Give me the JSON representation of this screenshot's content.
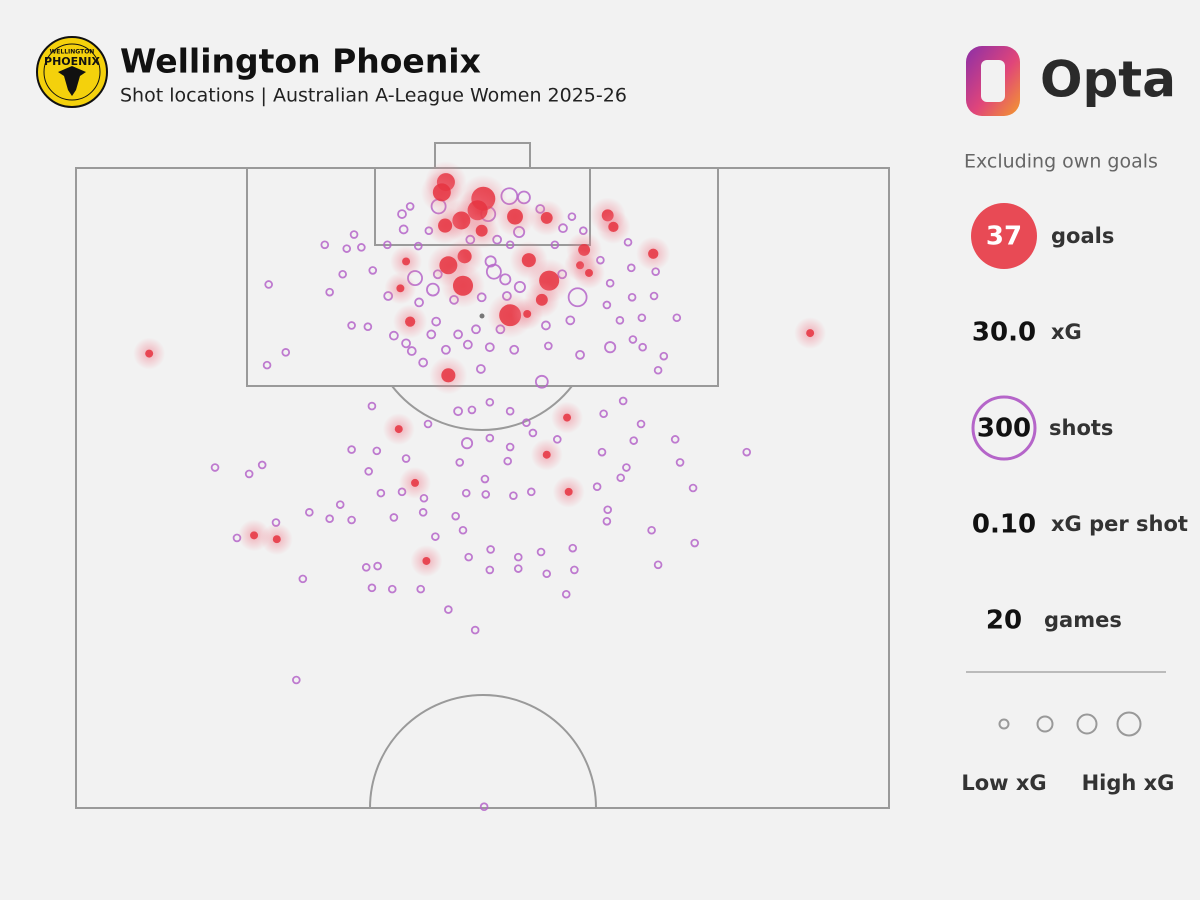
{
  "header": {
    "badge_top": "WELLINGTON",
    "badge_main": "PHOENIX",
    "title": "Wellington Phoenix",
    "subtitle": "Shot locations | Australian A-League Women 2025-26",
    "brand": "Opta"
  },
  "sidebar": {
    "note": "Excluding own goals",
    "goals_value": "37",
    "xg_value": "30.0",
    "xg_label": "xG",
    "shots_value": "300",
    "xg_per_shot_value": "0.10",
    "xg_per_shot_label": "xG per shot",
    "games_value": "20",
    "games_label": "games",
    "legend_low": "Low xG",
    "legend_high": "High xG"
  },
  "chart_data": {
    "type": "scatter",
    "xlim": [
      0,
      100
    ],
    "ylim": [
      50,
      100
    ],
    "series": [
      {
        "name": "goals",
        "color": "#e6323f",
        "x": [
          45.5,
          45.0,
          50.1,
          49.4,
          47.4,
          45.4,
          54.0,
          49.9,
          57.9,
          65.4,
          66.1,
          62.5,
          71.0,
          40.6,
          47.8,
          45.8,
          55.7,
          62.0,
          63.1,
          58.2,
          47.6,
          57.3,
          39.9,
          53.4,
          55.5,
          41.1,
          45.8,
          90.3,
          9.0,
          39.7,
          60.4,
          57.9,
          41.7,
          60.6,
          21.9,
          24.7,
          43.1
        ],
        "y": [
          98.9,
          98.1,
          97.6,
          96.7,
          95.9,
          95.5,
          96.2,
          95.1,
          96.1,
          96.3,
          95.4,
          93.6,
          93.3,
          92.7,
          93.1,
          92.4,
          92.8,
          92.4,
          91.8,
          91.2,
          90.8,
          89.7,
          90.6,
          88.5,
          88.6,
          88.0,
          83.8,
          87.1,
          85.5,
          79.6,
          80.5,
          77.6,
          75.4,
          74.7,
          71.3,
          71.0,
          69.3
        ],
        "size": [
          0.25,
          0.25,
          0.51,
          0.33,
          0.25,
          0.13,
          0.18,
          0.08,
          0.08,
          0.08,
          0.05,
          0.08,
          0.05,
          0.02,
          0.13,
          0.25,
          0.13,
          0.02,
          0.02,
          0.33,
          0.33,
          0.08,
          0.02,
          0.41,
          0.02,
          0.05,
          0.13,
          0.02,
          0.02,
          0.02,
          0.02,
          0.02,
          0.02,
          0.02,
          0.02,
          0.02,
          0.02
        ]
      },
      {
        "name": "shots",
        "color": "#b565c9",
        "x": [
          53.3,
          55.1,
          44.6,
          50.7,
          40.1,
          41.1,
          40.3,
          57.1,
          61.0,
          59.9,
          62.4,
          54.5,
          51.8,
          48.5,
          53.4,
          58.9,
          43.4,
          30.6,
          34.2,
          33.3,
          35.1,
          38.3,
          36.5,
          42.1,
          41.7,
          44.5,
          43.9,
          42.2,
          38.4,
          31.2,
          32.8,
          51.0,
          51.4,
          52.8,
          54.6,
          53.0,
          49.9,
          46.5,
          44.3,
          47.0,
          49.2,
          52.2,
          57.8,
          60.8,
          61.7,
          59.8,
          64.5,
          65.7,
          67.9,
          68.3,
          65.3,
          66.9,
          69.6,
          71.3,
          68.5,
          65.7,
          62.0,
          58.1,
          53.9,
          50.9,
          48.2,
          45.5,
          43.7,
          41.3,
          39.1,
          33.9,
          35.9,
          25.8,
          23.5,
          23.7,
          72.3,
          71.6,
          69.7,
          57.3,
          49.8,
          42.7,
          40.6,
          73.9,
          71.1,
          68.4,
          36.4,
          47.0,
          48.7,
          50.9,
          53.4,
          55.4,
          64.9,
          67.3,
          69.5,
          68.6,
          67.7,
          73.7,
          74.3,
          75.9,
          82.5,
          64.7,
          59.2,
          56.2,
          53.4,
          53.1,
          50.9,
          48.1,
          47.2,
          43.3,
          40.6,
          37.0,
          33.9,
          36.0,
          37.5,
          40.1,
          39.1,
          42.8,
          42.7,
          32.5,
          33.9,
          31.2,
          28.7,
          22.9,
          21.3,
          17.1,
          19.8,
          24.6,
          27.9,
          35.7,
          37.1,
          36.4,
          38.9,
          42.4,
          45.8,
          49.1,
          27.1,
          50.2,
          47.6,
          51.0,
          50.9,
          54.4,
          57.2,
          61.1,
          61.3,
          60.3,
          57.9,
          54.4,
          48.3,
          48.0,
          50.3,
          50.4,
          53.8,
          56.0,
          64.1,
          65.4,
          65.3,
          70.8,
          71.6,
          76.1,
          67.0,
          46.7,
          44.2
        ],
        "y": [
          97.8,
          97.7,
          97.0,
          96.4,
          96.4,
          97.0,
          95.2,
          96.8,
          96.2,
          95.3,
          95.1,
          95.0,
          94.4,
          94.4,
          94.0,
          94.0,
          95.1,
          94.0,
          94.8,
          93.7,
          93.8,
          94.0,
          92.0,
          93.9,
          91.4,
          91.7,
          90.5,
          89.5,
          90.0,
          90.3,
          91.7,
          92.7,
          91.9,
          91.3,
          90.7,
          90.0,
          89.9,
          89.7,
          88.0,
          87.0,
          87.4,
          87.4,
          87.7,
          88.1,
          89.9,
          91.7,
          92.8,
          91.0,
          94.2,
          92.2,
          89.3,
          88.1,
          88.3,
          91.9,
          86.6,
          86.0,
          85.4,
          86.1,
          85.8,
          86.0,
          86.2,
          85.8,
          87.0,
          85.7,
          86.9,
          87.7,
          87.6,
          85.6,
          84.6,
          90.9,
          85.3,
          84.2,
          86.0,
          83.3,
          84.3,
          84.8,
          86.3,
          88.3,
          90.0,
          89.9,
          81.4,
          81.0,
          81.1,
          81.7,
          81.0,
          80.1,
          80.8,
          81.8,
          80.0,
          78.7,
          76.6,
          78.8,
          77.0,
          75.0,
          77.8,
          77.8,
          78.8,
          79.3,
          78.2,
          77.1,
          78.9,
          78.5,
          77.0,
          80.0,
          77.3,
          77.9,
          78.0,
          76.3,
          74.6,
          74.7,
          72.7,
          74.2,
          73.1,
          73.7,
          72.5,
          72.6,
          73.1,
          76.8,
          76.1,
          76.6,
          71.1,
          72.3,
          67.9,
          68.8,
          68.9,
          67.2,
          67.1,
          67.1,
          65.5,
          63.9,
          60.0,
          50.1,
          71.7,
          70.2,
          68.6,
          69.6,
          70.0,
          70.3,
          68.6,
          66.7,
          68.3,
          68.7,
          69.6,
          74.6,
          75.7,
          74.5,
          74.4,
          74.7,
          75.1,
          73.3,
          72.4,
          71.7,
          69.0,
          70.7,
          75.8,
          72.8,
          71.2
        ],
        "size": [
          0.18,
          0.08,
          0.13,
          0.13,
          0.02,
          0.01,
          0.02,
          0.02,
          0.01,
          0.02,
          0.01,
          0.05,
          0.02,
          0.02,
          0.01,
          0.01,
          0.01,
          0.01,
          0.01,
          0.01,
          0.01,
          0.01,
          0.01,
          0.01,
          0.13,
          0.02,
          0.08,
          0.02,
          0.02,
          0.01,
          0.01,
          0.05,
          0.13,
          0.05,
          0.05,
          0.02,
          0.02,
          0.02,
          0.02,
          0.02,
          0.02,
          0.02,
          0.02,
          0.02,
          0.25,
          0.02,
          0.01,
          0.01,
          0.01,
          0.01,
          0.01,
          0.01,
          0.01,
          0.01,
          0.01,
          0.05,
          0.02,
          0.01,
          0.02,
          0.02,
          0.02,
          0.02,
          0.02,
          0.02,
          0.02,
          0.01,
          0.01,
          0.01,
          0.01,
          0.01,
          0.01,
          0.01,
          0.01,
          0.08,
          0.02,
          0.02,
          0.02,
          0.01,
          0.01,
          0.01,
          0.01,
          0.02,
          0.01,
          0.01,
          0.01,
          0.01,
          0.01,
          0.01,
          0.01,
          0.01,
          0.01,
          0.01,
          0.01,
          0.01,
          0.01,
          0.01,
          0.01,
          0.01,
          0.01,
          0.01,
          0.01,
          0.05,
          0.01,
          0.01,
          0.01,
          0.01,
          0.01,
          0.01,
          0.01,
          0.01,
          0.01,
          0.01,
          0.01,
          0.01,
          0.01,
          0.01,
          0.01,
          0.01,
          0.01,
          0.01,
          0.01,
          0.01,
          0.01,
          0.01,
          0.01,
          0.01,
          0.01,
          0.01,
          0.01,
          0.01,
          0.01,
          0.01,
          0.01,
          0.01,
          0.01,
          0.01,
          0.01,
          0.01,
          0.01,
          0.01,
          0.01,
          0.01,
          0.01,
          0.01,
          0.01,
          0.01,
          0.01,
          0.01,
          0.01,
          0.01,
          0.01,
          0.01,
          0.01,
          0.01,
          0.01,
          0.01,
          0.01
        ]
      }
    ]
  }
}
